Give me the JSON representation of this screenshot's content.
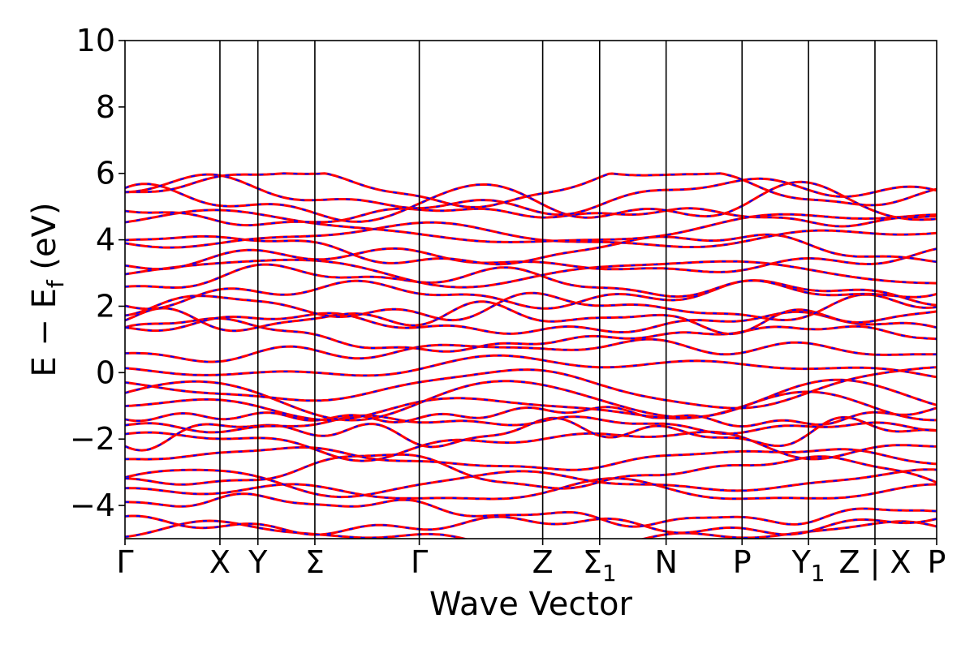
{
  "chart_data": {
    "type": "line",
    "title": "",
    "xlabel": "Wave Vector",
    "ylabel": "E − E",
    "ylabel_sub": "f",
    "ylabel_unit": " (eV)",
    "ylim": [
      -5,
      10
    ],
    "yticks": [
      -4,
      -2,
      0,
      2,
      4,
      6,
      8,
      10
    ],
    "ytick_labels": [
      "−4",
      "−2",
      "0",
      "2",
      "4",
      "6",
      "8",
      "10"
    ],
    "x_path_breaks": [
      0,
      1.0,
      1.4,
      2.0,
      3.1,
      4.4,
      5.0,
      5.7,
      6.5,
      7.2,
      7.9,
      8.55
    ],
    "x_range": [
      0,
      8.55
    ],
    "high_symmetry_labels": [
      {
        "text": "Γ",
        "sub": ""
      },
      {
        "text": "X",
        "sub": ""
      },
      {
        "text": "Y",
        "sub": ""
      },
      {
        "text": "Σ",
        "sub": ""
      },
      {
        "text": "Γ",
        "sub": ""
      },
      {
        "text": "Z",
        "sub": ""
      },
      {
        "text": "Σ",
        "sub": "1"
      },
      {
        "text": "N",
        "sub": ""
      },
      {
        "text": "P",
        "sub": ""
      },
      {
        "text": "Y",
        "sub": "1"
      },
      {
        "text": "Z | X",
        "sub": ""
      },
      {
        "text": "P",
        "sub": ""
      }
    ],
    "series": [
      {
        "name": "",
        "color": "#ff0000",
        "style": "solid"
      },
      {
        "name": "",
        "color": "#0000ff",
        "style": "dashed"
      }
    ],
    "band_energies_at_gamma": [
      -4.95,
      -4.6,
      -4.15,
      -3.6,
      -3.3,
      -3.0,
      -2.6,
      -2.1,
      -1.8,
      -1.55,
      -1.3,
      -1.05,
      -0.8,
      -0.45,
      0.15,
      0.65,
      1.05,
      1.45,
      1.65,
      1.95,
      2.35,
      2.7,
      3.05,
      3.35,
      3.7,
      4.1,
      4.35,
      4.75,
      5.05,
      5.3,
      5.6
    ],
    "energy_window_top": 6.0,
    "grid": false,
    "legend": "none"
  }
}
